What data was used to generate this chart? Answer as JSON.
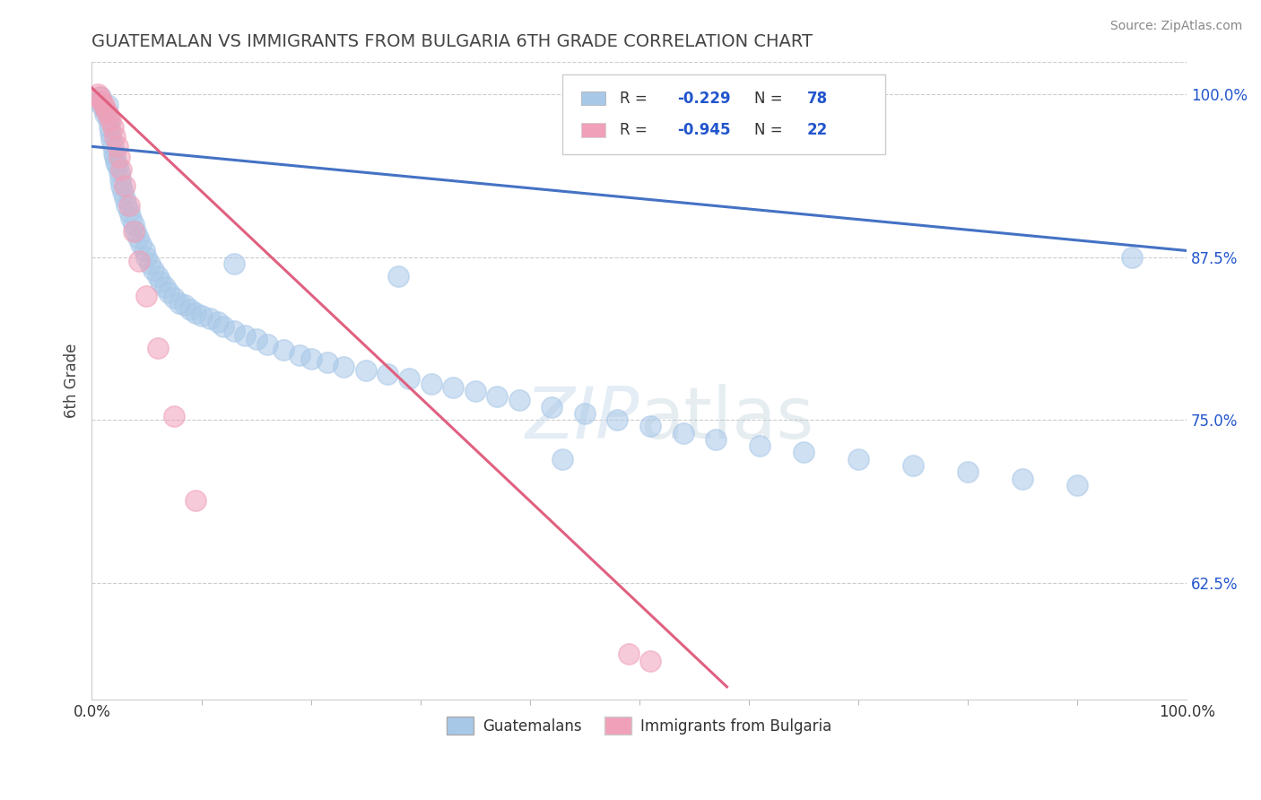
{
  "title": "GUATEMALAN VS IMMIGRANTS FROM BULGARIA 6TH GRADE CORRELATION CHART",
  "source_text": "Source: ZipAtlas.com",
  "ylabel": "6th Grade",
  "x_min": 0.0,
  "x_max": 1.0,
  "y_min": 0.535,
  "y_max": 1.025,
  "ytick_labels": [
    "62.5%",
    "75.0%",
    "87.5%",
    "100.0%"
  ],
  "ytick_values": [
    0.625,
    0.75,
    0.875,
    1.0
  ],
  "blue_scatter_x": [
    0.005,
    0.008,
    0.01,
    0.012,
    0.013,
    0.014,
    0.015,
    0.016,
    0.017,
    0.018,
    0.019,
    0.02,
    0.021,
    0.022,
    0.023,
    0.025,
    0.026,
    0.027,
    0.028,
    0.03,
    0.032,
    0.034,
    0.036,
    0.038,
    0.04,
    0.042,
    0.045,
    0.048,
    0.05,
    0.053,
    0.056,
    0.06,
    0.063,
    0.067,
    0.07,
    0.075,
    0.08,
    0.085,
    0.09,
    0.095,
    0.1,
    0.108,
    0.115,
    0.12,
    0.13,
    0.14,
    0.15,
    0.16,
    0.175,
    0.19,
    0.2,
    0.215,
    0.23,
    0.25,
    0.27,
    0.29,
    0.31,
    0.33,
    0.35,
    0.37,
    0.39,
    0.42,
    0.45,
    0.48,
    0.51,
    0.54,
    0.57,
    0.61,
    0.65,
    0.7,
    0.75,
    0.8,
    0.85,
    0.9,
    0.95,
    0.13,
    0.28,
    0.43
  ],
  "blue_scatter_y": [
    0.995,
    0.998,
    0.99,
    0.985,
    0.988,
    0.992,
    0.98,
    0.975,
    0.97,
    0.965,
    0.96,
    0.955,
    0.952,
    0.948,
    0.945,
    0.94,
    0.935,
    0.93,
    0.925,
    0.92,
    0.915,
    0.91,
    0.905,
    0.9,
    0.895,
    0.89,
    0.885,
    0.88,
    0.875,
    0.87,
    0.865,
    0.86,
    0.856,
    0.852,
    0.848,
    0.844,
    0.84,
    0.838,
    0.835,
    0.832,
    0.83,
    0.828,
    0.825,
    0.822,
    0.818,
    0.815,
    0.812,
    0.808,
    0.804,
    0.8,
    0.797,
    0.794,
    0.791,
    0.788,
    0.785,
    0.782,
    0.778,
    0.775,
    0.772,
    0.768,
    0.765,
    0.76,
    0.755,
    0.75,
    0.745,
    0.74,
    0.735,
    0.73,
    0.725,
    0.72,
    0.715,
    0.71,
    0.705,
    0.7,
    0.875,
    0.87,
    0.86,
    0.72
  ],
  "pink_scatter_x": [
    0.005,
    0.007,
    0.009,
    0.011,
    0.013,
    0.015,
    0.017,
    0.019,
    0.021,
    0.023,
    0.025,
    0.027,
    0.03,
    0.034,
    0.038,
    0.043,
    0.05,
    0.06,
    0.075,
    0.095,
    0.49,
    0.51
  ],
  "pink_scatter_y": [
    1.0,
    0.998,
    0.995,
    0.992,
    0.988,
    0.984,
    0.98,
    0.975,
    0.968,
    0.96,
    0.952,
    0.942,
    0.93,
    0.915,
    0.895,
    0.872,
    0.845,
    0.805,
    0.753,
    0.688,
    0.57,
    0.565
  ],
  "blue_line_x": [
    0.0,
    1.0
  ],
  "blue_line_y": [
    0.96,
    0.88
  ],
  "pink_line_x": [
    0.0,
    0.58
  ],
  "pink_line_y": [
    1.005,
    0.545
  ],
  "dot_color_blue": "#a8c8e8",
  "dot_color_pink": "#f0a0b8",
  "line_color_blue": "#4472c4",
  "line_color_pink": "#e06080",
  "legend_text_color": "#2255cc",
  "grid_color": "#cccccc",
  "background_color": "#ffffff",
  "title_color": "#444444",
  "source_color": "#888888",
  "axis_label_color": "#444444",
  "right_axis_color": "#2255cc",
  "xtick_left": "0.0%",
  "xtick_right": "100.0%"
}
